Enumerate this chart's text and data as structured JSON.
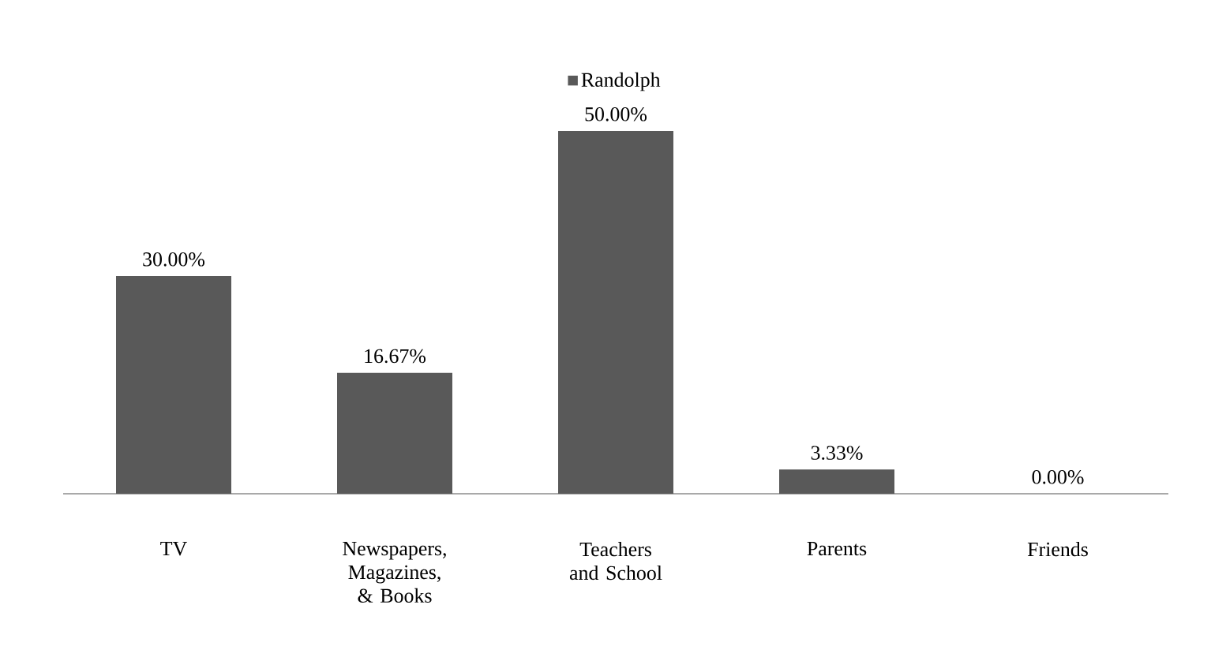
{
  "chart_data": {
    "type": "bar",
    "categories": [
      "TV",
      "Newspapers, Magazines, & Books",
      "Teachers and School",
      "Parents",
      "Friends"
    ],
    "series": [
      {
        "name": "Randolph",
        "color": "#595959",
        "values": [
          30,
          16.67,
          50,
          3.33,
          0
        ],
        "value_labels": [
          "30.00%",
          "16.67%",
          "50.00%",
          "3.33%",
          "0.00%"
        ]
      }
    ],
    "legend": "top",
    "tick_labels": "x"
  }
}
